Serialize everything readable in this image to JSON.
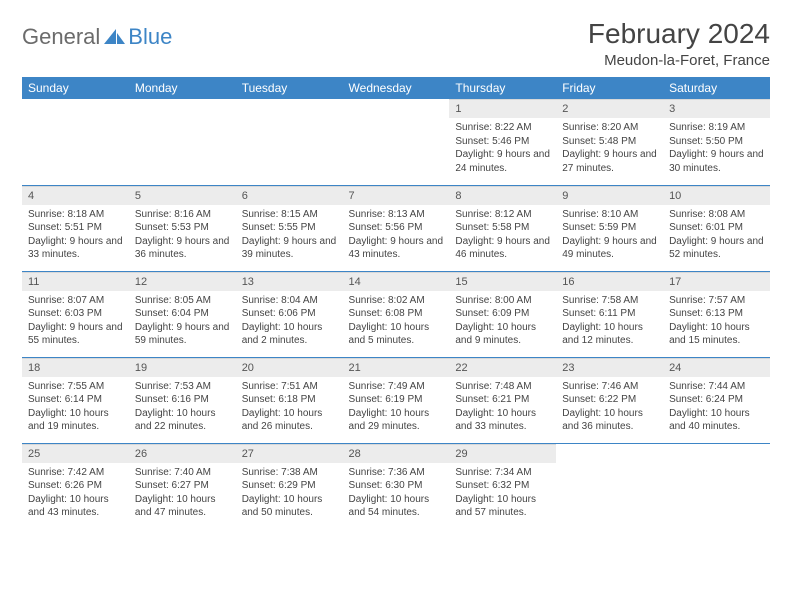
{
  "logo": {
    "part1": "General",
    "part2": "Blue"
  },
  "title": "February 2024",
  "location": "Meudon-la-Foret, France",
  "colors": {
    "header_bg": "#3d85c6",
    "header_text": "#ffffff",
    "daynum_bg": "#ececec",
    "row_border": "#3d85c6",
    "logo_gray": "#6b6b6b",
    "logo_blue": "#3d85c6",
    "body_text": "#444444"
  },
  "weekday_headers": [
    "Sunday",
    "Monday",
    "Tuesday",
    "Wednesday",
    "Thursday",
    "Friday",
    "Saturday"
  ],
  "weeks": [
    [
      null,
      null,
      null,
      null,
      {
        "n": "1",
        "sr": "8:22 AM",
        "ss": "5:46 PM",
        "dl": "9 hours and 24 minutes."
      },
      {
        "n": "2",
        "sr": "8:20 AM",
        "ss": "5:48 PM",
        "dl": "9 hours and 27 minutes."
      },
      {
        "n": "3",
        "sr": "8:19 AM",
        "ss": "5:50 PM",
        "dl": "9 hours and 30 minutes."
      }
    ],
    [
      {
        "n": "4",
        "sr": "8:18 AM",
        "ss": "5:51 PM",
        "dl": "9 hours and 33 minutes."
      },
      {
        "n": "5",
        "sr": "8:16 AM",
        "ss": "5:53 PM",
        "dl": "9 hours and 36 minutes."
      },
      {
        "n": "6",
        "sr": "8:15 AM",
        "ss": "5:55 PM",
        "dl": "9 hours and 39 minutes."
      },
      {
        "n": "7",
        "sr": "8:13 AM",
        "ss": "5:56 PM",
        "dl": "9 hours and 43 minutes."
      },
      {
        "n": "8",
        "sr": "8:12 AM",
        "ss": "5:58 PM",
        "dl": "9 hours and 46 minutes."
      },
      {
        "n": "9",
        "sr": "8:10 AM",
        "ss": "5:59 PM",
        "dl": "9 hours and 49 minutes."
      },
      {
        "n": "10",
        "sr": "8:08 AM",
        "ss": "6:01 PM",
        "dl": "9 hours and 52 minutes."
      }
    ],
    [
      {
        "n": "11",
        "sr": "8:07 AM",
        "ss": "6:03 PM",
        "dl": "9 hours and 55 minutes."
      },
      {
        "n": "12",
        "sr": "8:05 AM",
        "ss": "6:04 PM",
        "dl": "9 hours and 59 minutes."
      },
      {
        "n": "13",
        "sr": "8:04 AM",
        "ss": "6:06 PM",
        "dl": "10 hours and 2 minutes."
      },
      {
        "n": "14",
        "sr": "8:02 AM",
        "ss": "6:08 PM",
        "dl": "10 hours and 5 minutes."
      },
      {
        "n": "15",
        "sr": "8:00 AM",
        "ss": "6:09 PM",
        "dl": "10 hours and 9 minutes."
      },
      {
        "n": "16",
        "sr": "7:58 AM",
        "ss": "6:11 PM",
        "dl": "10 hours and 12 minutes."
      },
      {
        "n": "17",
        "sr": "7:57 AM",
        "ss": "6:13 PM",
        "dl": "10 hours and 15 minutes."
      }
    ],
    [
      {
        "n": "18",
        "sr": "7:55 AM",
        "ss": "6:14 PM",
        "dl": "10 hours and 19 minutes."
      },
      {
        "n": "19",
        "sr": "7:53 AM",
        "ss": "6:16 PM",
        "dl": "10 hours and 22 minutes."
      },
      {
        "n": "20",
        "sr": "7:51 AM",
        "ss": "6:18 PM",
        "dl": "10 hours and 26 minutes."
      },
      {
        "n": "21",
        "sr": "7:49 AM",
        "ss": "6:19 PM",
        "dl": "10 hours and 29 minutes."
      },
      {
        "n": "22",
        "sr": "7:48 AM",
        "ss": "6:21 PM",
        "dl": "10 hours and 33 minutes."
      },
      {
        "n": "23",
        "sr": "7:46 AM",
        "ss": "6:22 PM",
        "dl": "10 hours and 36 minutes."
      },
      {
        "n": "24",
        "sr": "7:44 AM",
        "ss": "6:24 PM",
        "dl": "10 hours and 40 minutes."
      }
    ],
    [
      {
        "n": "25",
        "sr": "7:42 AM",
        "ss": "6:26 PM",
        "dl": "10 hours and 43 minutes."
      },
      {
        "n": "26",
        "sr": "7:40 AM",
        "ss": "6:27 PM",
        "dl": "10 hours and 47 minutes."
      },
      {
        "n": "27",
        "sr": "7:38 AM",
        "ss": "6:29 PM",
        "dl": "10 hours and 50 minutes."
      },
      {
        "n": "28",
        "sr": "7:36 AM",
        "ss": "6:30 PM",
        "dl": "10 hours and 54 minutes."
      },
      {
        "n": "29",
        "sr": "7:34 AM",
        "ss": "6:32 PM",
        "dl": "10 hours and 57 minutes."
      },
      null,
      null
    ]
  ],
  "labels": {
    "sunrise": "Sunrise:",
    "sunset": "Sunset:",
    "daylight": "Daylight:"
  }
}
